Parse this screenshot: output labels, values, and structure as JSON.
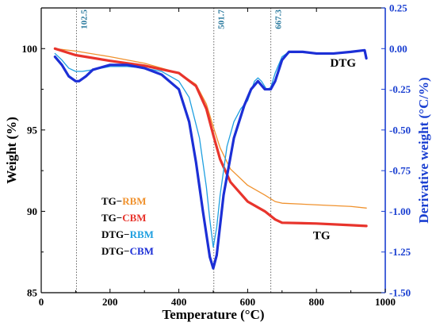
{
  "chart_data": {
    "type": "line",
    "xlabel": "Temperature (°C)",
    "ylabel_left": "Weight (%)",
    "ylabel_right": "Derivative weight (°C/%)",
    "xlim": [
      0,
      1000
    ],
    "ylim_left": [
      85,
      102.5
    ],
    "ylim_right": [
      -1.5,
      0.25
    ],
    "x_ticks": [
      "0",
      "200",
      "400",
      "600",
      "800",
      "1000"
    ],
    "y_left_ticks": [
      "85",
      "90",
      "95",
      "100"
    ],
    "y_right_ticks": [
      "0.25",
      "0.00",
      "-0.25",
      "-0.50",
      "-0.75",
      "-1.00",
      "-1.25",
      "-1.50"
    ],
    "reference_lines": [
      {
        "x": 102.5,
        "label": "102.5"
      },
      {
        "x": 501.7,
        "label": "501.7"
      },
      {
        "x": 667.3,
        "label": "667.3"
      }
    ],
    "annotations": [
      {
        "text": "DTG",
        "x": 840,
        "y_left": 98.9
      },
      {
        "text": "TG",
        "x": 790,
        "y_left": 88.3
      }
    ],
    "legend": [
      {
        "prefix": "TG−",
        "suffix": "RBM",
        "color": "#f0922e"
      },
      {
        "prefix": "TG−",
        "suffix": "CBM",
        "color": "#e8342c"
      },
      {
        "prefix": "DTG−",
        "suffix": "RBM",
        "color": "#1e9fe0"
      },
      {
        "prefix": "DTG−",
        "suffix": "CBM",
        "color": "#1c2fd6"
      }
    ],
    "series": [
      {
        "name": "TG−RBM",
        "axis": "left",
        "color": "#f0922e",
        "width": 1.3,
        "x": [
          40,
          100,
          200,
          300,
          400,
          450,
          480,
          500,
          520,
          550,
          600,
          650,
          680,
          700,
          800,
          900,
          945
        ],
        "y": [
          100.0,
          99.85,
          99.5,
          99.1,
          98.5,
          97.8,
          96.6,
          95.2,
          93.9,
          92.6,
          91.6,
          91.0,
          90.6,
          90.5,
          90.4,
          90.3,
          90.2
        ]
      },
      {
        "name": "TG−CBM",
        "axis": "left",
        "color": "#e8342c",
        "width": 3.2,
        "x": [
          40,
          100,
          200,
          300,
          400,
          450,
          480,
          500,
          520,
          550,
          600,
          650,
          680,
          700,
          800,
          900,
          945
        ],
        "y": [
          100.0,
          99.6,
          99.25,
          98.95,
          98.5,
          97.7,
          96.3,
          94.7,
          93.2,
          91.8,
          90.6,
          90.0,
          89.5,
          89.3,
          89.25,
          89.15,
          89.1
        ]
      },
      {
        "name": "DTG−RBM",
        "axis": "right",
        "color": "#1e9fe0",
        "width": 1.3,
        "x": [
          40,
          60,
          80,
          100,
          120,
          150,
          200,
          250,
          300,
          350,
          400,
          430,
          460,
          480,
          490,
          500,
          510,
          520,
          540,
          560,
          580,
          600,
          620,
          630,
          640,
          655,
          667,
          680,
          700,
          720,
          760,
          800,
          850,
          900,
          940,
          945
        ],
        "y": [
          -0.03,
          -0.07,
          -0.12,
          -0.14,
          -0.14,
          -0.13,
          -0.11,
          -0.11,
          -0.12,
          -0.14,
          -0.2,
          -0.3,
          -0.55,
          -0.85,
          -1.05,
          -1.22,
          -1.1,
          -0.9,
          -0.6,
          -0.45,
          -0.37,
          -0.32,
          -0.2,
          -0.18,
          -0.2,
          -0.25,
          -0.24,
          -0.15,
          -0.05,
          -0.02,
          -0.02,
          -0.03,
          -0.03,
          -0.02,
          -0.01,
          -0.05
        ]
      },
      {
        "name": "DTG−CBM",
        "axis": "right",
        "color": "#1c2fd6",
        "width": 3.2,
        "x": [
          40,
          60,
          80,
          100,
          110,
          130,
          150,
          200,
          250,
          300,
          350,
          400,
          430,
          450,
          470,
          490,
          500,
          510,
          530,
          560,
          590,
          610,
          630,
          650,
          667,
          680,
          700,
          720,
          760,
          800,
          850,
          900,
          940,
          945
        ],
        "y": [
          -0.05,
          -0.1,
          -0.17,
          -0.2,
          -0.2,
          -0.17,
          -0.13,
          -0.1,
          -0.1,
          -0.12,
          -0.16,
          -0.25,
          -0.45,
          -0.7,
          -1.0,
          -1.28,
          -1.35,
          -1.27,
          -0.9,
          -0.55,
          -0.35,
          -0.25,
          -0.2,
          -0.25,
          -0.25,
          -0.2,
          -0.07,
          -0.02,
          -0.02,
          -0.03,
          -0.03,
          -0.02,
          -0.01,
          -0.06
        ]
      }
    ]
  }
}
